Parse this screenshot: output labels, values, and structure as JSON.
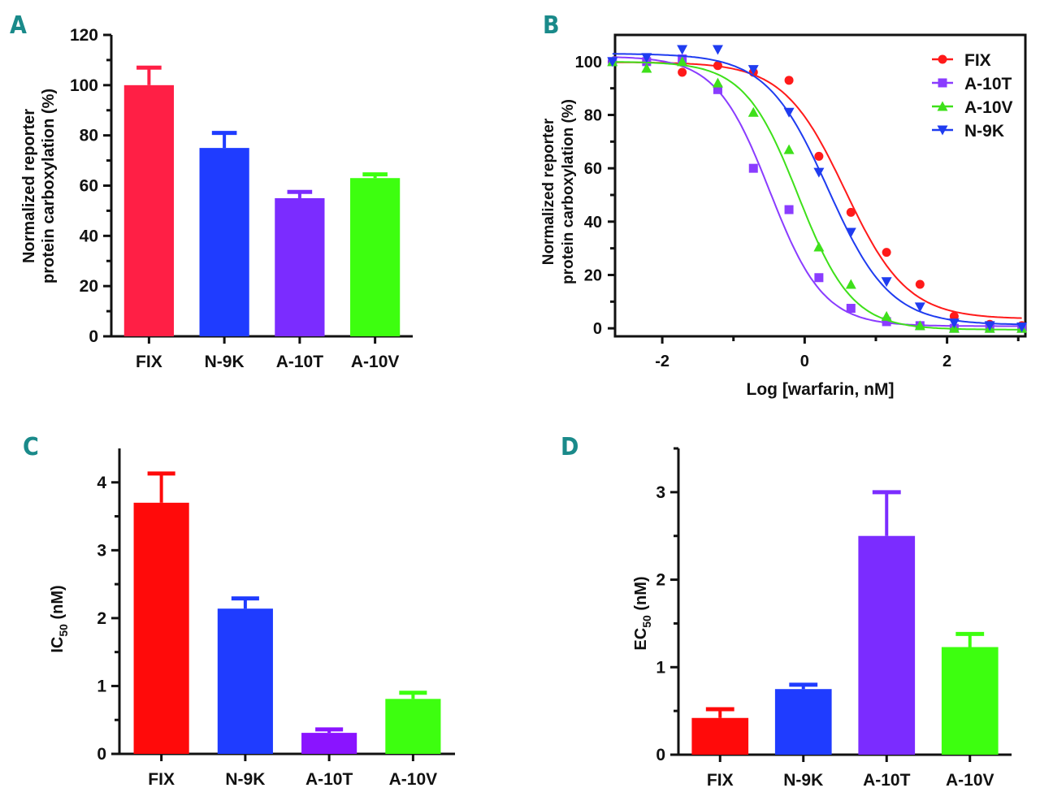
{
  "figure": {
    "panels": [
      "A",
      "B",
      "C",
      "D"
    ]
  },
  "chart_data": [
    {
      "panel": "A",
      "type": "bar",
      "title": "",
      "xlabel": "",
      "ylabel_line1": "Normalized reporter",
      "ylabel_line2": "protein carboxylation (%)",
      "categories": [
        "FIX",
        "N-9K",
        "A-10T",
        "A-10V"
      ],
      "values": [
        100,
        75,
        55,
        63
      ],
      "error_upper": [
        107,
        81,
        57.5,
        64.5
      ],
      "colors": [
        "#ff1f45",
        "#1f3cff",
        "#7b2cff",
        "#3dff0f"
      ],
      "ylim": [
        0,
        120
      ],
      "yticks": [
        0,
        20,
        40,
        60,
        80,
        100,
        120
      ],
      "grid": false
    },
    {
      "panel": "B",
      "type": "line",
      "title": "",
      "xlabel": "Log [warfarin, nM]",
      "ylabel_line1": "Normalized reporter",
      "ylabel_line2": "protein carboxylation (%)",
      "xlim": [
        -2.8,
        3.1
      ],
      "ylim": [
        -3,
        110
      ],
      "xticks": [
        -2,
        0,
        2
      ],
      "yticks": [
        0,
        20,
        40,
        60,
        80,
        100
      ],
      "legend_position": "top-right",
      "grid": false,
      "x": [
        -2.7,
        -2.22,
        -1.72,
        -1.22,
        -0.72,
        -0.22,
        0.28,
        0.78,
        1.28,
        1.78,
        2.28,
        2.78,
        3.03
      ],
      "series": [
        {
          "name": "FIX",
          "color": "#ff1a1a",
          "marker": "circle",
          "x": [
            -2.7,
            -2.22,
            -1.72,
            -1.22,
            -0.72,
            -0.22,
            0.2,
            0.65,
            1.15,
            1.62,
            2.1,
            2.6,
            3.05
          ],
          "y": [
            100,
            100,
            96,
            98.5,
            96,
            93,
            64.5,
            43.5,
            28.5,
            16.5,
            4.5,
            1.5,
            1
          ],
          "fit": {
            "top": 99.8,
            "bottom": 3.5,
            "logIC50": 0.57,
            "hill": -1.0
          }
        },
        {
          "name": "A-10T",
          "color": "#8a3cff",
          "marker": "square",
          "x": [
            -2.7,
            -2.22,
            -1.72,
            -1.22,
            -0.72,
            -0.22,
            0.2,
            0.65,
            1.15,
            1.62,
            2.1,
            2.6,
            3.05
          ],
          "y": [
            100,
            100,
            101,
            89.5,
            60,
            44.5,
            19,
            7.5,
            2.5,
            1,
            0,
            0,
            0
          ],
          "fit": {
            "top": 102,
            "bottom": 0.8,
            "logIC50": -0.49,
            "hill": -1.15
          }
        },
        {
          "name": "A-10V",
          "color": "#3ee01a",
          "marker": "triangle-up",
          "x": [
            -2.7,
            -2.22,
            -1.72,
            -1.22,
            -0.72,
            -0.22,
            0.2,
            0.65,
            1.15,
            1.62,
            2.1,
            2.6,
            3.05
          ],
          "y": [
            100,
            97.5,
            100,
            92,
            81,
            67,
            30.5,
            16.5,
            4.5,
            1,
            0,
            0,
            0
          ],
          "fit": {
            "top": 100,
            "bottom": -0.5,
            "logIC50": -0.09,
            "hill": -1.15
          }
        },
        {
          "name": "N-9K",
          "color": "#1f3cf0",
          "marker": "triangle-down",
          "x": [
            -2.7,
            -2.22,
            -1.72,
            -1.22,
            -0.72,
            -0.22,
            0.2,
            0.65,
            1.15,
            1.62,
            2.1,
            2.6,
            3.05
          ],
          "y": [
            100,
            101.5,
            104.5,
            104.5,
            97,
            81,
            58.5,
            36,
            17.5,
            8,
            2,
            1,
            0.5
          ],
          "fit": {
            "top": 103,
            "bottom": 1.3,
            "logIC50": 0.33,
            "hill": -1.0
          }
        }
      ]
    },
    {
      "panel": "C",
      "type": "bar",
      "title": "",
      "xlabel": "",
      "ylabel_main": "IC",
      "ylabel_sub": "50",
      "ylabel_unit": " (nM)",
      "categories": [
        "FIX",
        "N-9K",
        "A-10T",
        "A-10V"
      ],
      "values": [
        3.7,
        2.14,
        0.31,
        0.81
      ],
      "error_upper": [
        4.13,
        2.29,
        0.36,
        0.9
      ],
      "colors": [
        "#ff0a0a",
        "#1f3cff",
        "#8a14ff",
        "#3dff0f"
      ],
      "ylim": [
        0,
        4.5
      ],
      "yticks": [
        0,
        1,
        2,
        3,
        4
      ],
      "minor_yticks": [
        0.5,
        1.5,
        2.5,
        3.5
      ],
      "grid": false
    },
    {
      "panel": "D",
      "type": "bar",
      "title": "",
      "xlabel": "",
      "ylabel_main": "EC",
      "ylabel_sub": "50",
      "ylabel_unit": " (nM)",
      "categories": [
        "FIX",
        "N-9K",
        "A-10T",
        "A-10V"
      ],
      "values": [
        0.42,
        0.75,
        2.5,
        1.23
      ],
      "error_upper": [
        0.52,
        0.8,
        3.0,
        1.38
      ],
      "colors": [
        "#ff0a0a",
        "#1f3cff",
        "#7b2cff",
        "#3dff0f"
      ],
      "ylim": [
        0,
        3.5
      ],
      "yticks": [
        0,
        1,
        2,
        3
      ],
      "minor_yticks": [
        0.5,
        1.5,
        2.5,
        3.5
      ],
      "grid": false
    }
  ]
}
